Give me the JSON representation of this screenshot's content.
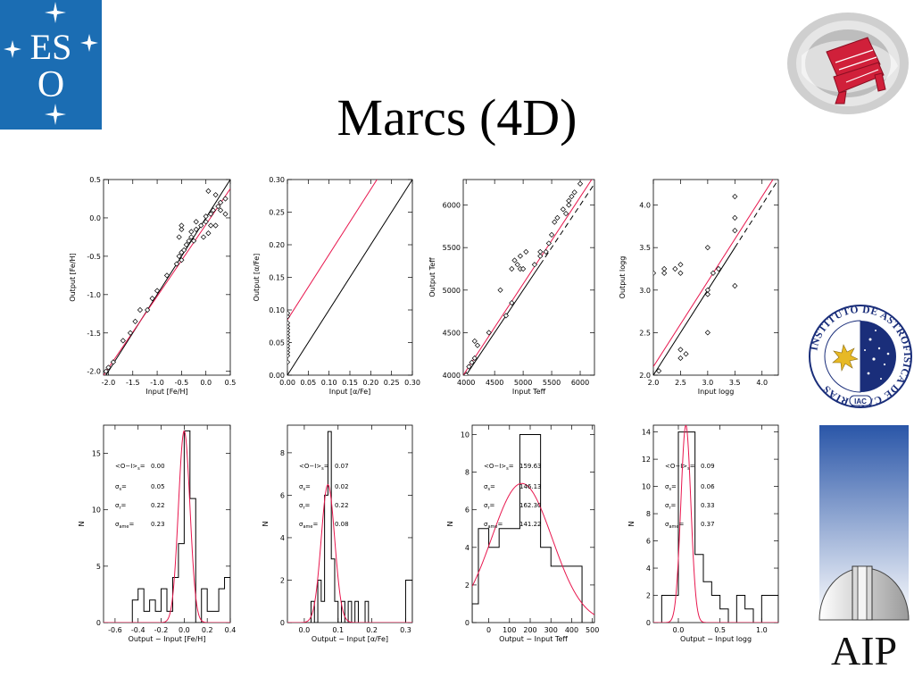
{
  "slide": {
    "title": "Marcs (4D)"
  },
  "logos": {
    "eso": {
      "text_top": "ES",
      "text_bottom": "O",
      "colors": {
        "bg": "#1b6db3",
        "fg": "#ffffff"
      }
    },
    "aip_globe": {
      "colors": {
        "ring": "#c8c8c8",
        "telescope": "#d0203a"
      }
    },
    "iac": {
      "ring_text": "INSTITUTO DE ASTROFISICA DE CANARIAS",
      "badge": "IAC",
      "colors": {
        "navy": "#1a2e7a",
        "gold": "#e7b925"
      }
    },
    "aip": {
      "text": "AIP",
      "colors": {
        "sky_top": "#2a56a8",
        "sky_bottom": "#ffffff"
      }
    }
  },
  "chart_data": [
    {
      "type": "scatter",
      "xlabel": "Input [Fe/H]",
      "ylabel": "Output [Fe/H]",
      "xlim": [
        -2.1,
        0.5
      ],
      "ylim": [
        -2.05,
        0.5
      ],
      "xticks": [
        -2.0,
        -1.5,
        -1.0,
        -0.5,
        0.0,
        0.5
      ],
      "xtick_labels": [
        "-2.0",
        "-1.5",
        "-1.0",
        "-0.5",
        "0.0",
        "0.5"
      ],
      "yticks": [
        -2.0,
        -1.5,
        -1.0,
        -0.5,
        0.0,
        0.5
      ],
      "ytick_labels": [
        "-2.0",
        "-1.5",
        "-1.0",
        "-0.5",
        "0.0",
        "0.5"
      ],
      "points": [
        [
          -2.05,
          -2.0
        ],
        [
          -2.0,
          -1.95
        ],
        [
          -1.9,
          -1.88
        ],
        [
          -1.7,
          -1.6
        ],
        [
          -1.55,
          -1.5
        ],
        [
          -1.45,
          -1.35
        ],
        [
          -1.35,
          -1.2
        ],
        [
          -1.2,
          -1.2
        ],
        [
          -1.1,
          -1.05
        ],
        [
          -1.0,
          -0.95
        ],
        [
          -0.8,
          -0.75
        ],
        [
          -0.6,
          -0.6
        ],
        [
          -0.55,
          -0.5
        ],
        [
          -0.5,
          -0.45
        ],
        [
          -0.5,
          -0.55
        ],
        [
          -0.45,
          -0.42
        ],
        [
          -0.4,
          -0.35
        ],
        [
          -0.35,
          -0.3
        ],
        [
          -0.3,
          -0.25
        ],
        [
          -0.3,
          -0.18
        ],
        [
          -0.25,
          -0.3
        ],
        [
          -0.2,
          -0.15
        ],
        [
          -0.2,
          -0.05
        ],
        [
          -0.1,
          -0.1
        ],
        [
          0.0,
          -0.05
        ],
        [
          0.0,
          0.02
        ],
        [
          0.05,
          -0.2
        ],
        [
          0.1,
          0.05
        ],
        [
          0.1,
          -0.1
        ],
        [
          0.15,
          0.1
        ],
        [
          0.2,
          -0.1
        ],
        [
          0.2,
          0.3
        ],
        [
          0.25,
          0.15
        ],
        [
          0.3,
          0.2
        ],
        [
          0.4,
          0.05
        ],
        [
          0.4,
          0.25
        ],
        [
          -0.55,
          -0.25
        ],
        [
          -0.5,
          -0.15
        ],
        [
          -0.5,
          -0.1
        ],
        [
          -0.05,
          -0.25
        ],
        [
          0.05,
          0.35
        ],
        [
          0.3,
          0.1
        ]
      ],
      "lines": [
        {
          "name": "one-to-one",
          "color": "#000000",
          "dash": false,
          "from": [
            -2.1,
            -2.1
          ],
          "to": [
            0.5,
            0.5
          ]
        },
        {
          "name": "fit",
          "color": "#e8174e",
          "dash": false,
          "from": [
            -2.1,
            -2.05
          ],
          "to": [
            0.5,
            0.38
          ]
        }
      ]
    },
    {
      "type": "scatter",
      "xlabel": "Input [α/Fe]",
      "ylabel": "Output [α/Fe]",
      "xlim": [
        0.0,
        0.3
      ],
      "ylim": [
        0.0,
        0.3
      ],
      "xticks": [
        0.0,
        0.05,
        0.1,
        0.15,
        0.2,
        0.25,
        0.3
      ],
      "xtick_labels": [
        "0.00",
        "0.05",
        "0.10",
        "0.15",
        "0.20",
        "0.25",
        "0.30"
      ],
      "yticks": [
        0.0,
        0.05,
        0.1,
        0.15,
        0.2,
        0.25,
        0.3
      ],
      "ytick_labels": [
        "0.00",
        "0.05",
        "0.10",
        "0.15",
        "0.20",
        "0.25",
        "0.30"
      ],
      "points": [
        [
          0.0,
          0.02
        ],
        [
          0.0,
          0.03
        ],
        [
          0.0,
          0.035
        ],
        [
          0.0,
          0.04
        ],
        [
          0.0,
          0.045
        ],
        [
          0.0,
          0.05
        ],
        [
          0.0,
          0.055
        ],
        [
          0.0,
          0.06
        ],
        [
          0.0,
          0.065
        ],
        [
          0.0,
          0.07
        ],
        [
          0.0,
          0.075
        ],
        [
          0.0,
          0.08
        ],
        [
          0.0,
          0.09
        ],
        [
          0.0,
          0.095
        ]
      ],
      "lines": [
        {
          "name": "one-to-one",
          "color": "#000000",
          "dash": false,
          "from": [
            0.0,
            0.0
          ],
          "to": [
            0.3,
            0.3
          ]
        },
        {
          "name": "fit",
          "color": "#e8174e",
          "dash": false,
          "from": [
            0.0,
            0.085
          ],
          "to": [
            0.3,
            0.385
          ]
        }
      ]
    },
    {
      "type": "scatter",
      "xlabel": "Input Teff",
      "ylabel": "Output Teff",
      "xlim": [
        3950,
        6250
      ],
      "ylim": [
        4000,
        6300
      ],
      "xticks": [
        4000,
        4500,
        5000,
        5500,
        6000
      ],
      "xtick_labels": [
        "4000",
        "4500",
        "5000",
        "5500",
        "6000"
      ],
      "yticks": [
        4000,
        4500,
        5000,
        5500,
        6000
      ],
      "ytick_labels": [
        "4000",
        "4500",
        "5000",
        "5500",
        "6000"
      ],
      "points": [
        [
          4000,
          4000
        ],
        [
          4050,
          4100
        ],
        [
          4100,
          4150
        ],
        [
          4150,
          4200
        ],
        [
          4150,
          4400
        ],
        [
          4200,
          4350
        ],
        [
          4400,
          4500
        ],
        [
          4600,
          5000
        ],
        [
          4700,
          4700
        ],
        [
          4800,
          4850
        ],
        [
          4800,
          5250
        ],
        [
          4850,
          5350
        ],
        [
          4900,
          5300
        ],
        [
          4950,
          5250
        ],
        [
          4950,
          5400
        ],
        [
          5000,
          5250
        ],
        [
          5050,
          5450
        ],
        [
          5200,
          5300
        ],
        [
          5300,
          5400
        ],
        [
          5300,
          5450
        ],
        [
          5400,
          5450
        ],
        [
          5450,
          5550
        ],
        [
          5500,
          5650
        ],
        [
          5550,
          5800
        ],
        [
          5600,
          5850
        ],
        [
          5700,
          5950
        ],
        [
          5800,
          6000
        ],
        [
          5800,
          6050
        ],
        [
          5850,
          6100
        ],
        [
          5900,
          6150
        ],
        [
          6000,
          6250
        ],
        [
          5750,
          5900
        ]
      ],
      "lines": [
        {
          "name": "one-to-one",
          "color": "#000000",
          "dash": false,
          "from": [
            3950,
            3950
          ],
          "to": [
            5300,
            5300
          ]
        },
        {
          "name": "one-to-one-extension",
          "color": "#000000",
          "dash": true,
          "from": [
            5300,
            5300
          ],
          "to": [
            6250,
            6250
          ]
        },
        {
          "name": "fit",
          "color": "#e8174e",
          "dash": false,
          "from": [
            3950,
            4000
          ],
          "to": [
            6250,
            6350
          ]
        }
      ]
    },
    {
      "type": "scatter",
      "xlabel": "Input logg",
      "ylabel": "Output logg",
      "xlim": [
        2.0,
        4.3
      ],
      "ylim": [
        2.0,
        4.3
      ],
      "xticks": [
        2.0,
        2.5,
        3.0,
        3.5,
        4.0
      ],
      "xtick_labels": [
        "2.0",
        "2.5",
        "3.0",
        "3.5",
        "4.0"
      ],
      "yticks": [
        2.0,
        2.5,
        3.0,
        3.5,
        4.0
      ],
      "ytick_labels": [
        "2.0",
        "2.5",
        "3.0",
        "3.5",
        "4.0"
      ],
      "points": [
        [
          2.0,
          3.2
        ],
        [
          2.1,
          2.05
        ],
        [
          2.2,
          3.25
        ],
        [
          2.2,
          3.2
        ],
        [
          2.4,
          3.25
        ],
        [
          2.5,
          3.3
        ],
        [
          2.5,
          3.2
        ],
        [
          2.5,
          2.2
        ],
        [
          2.6,
          2.25
        ],
        [
          3.0,
          3.0
        ],
        [
          3.0,
          3.5
        ],
        [
          3.0,
          2.5
        ],
        [
          3.1,
          3.2
        ],
        [
          3.2,
          3.25
        ],
        [
          3.5,
          3.05
        ],
        [
          3.5,
          3.85
        ],
        [
          3.5,
          4.1
        ],
        [
          3.5,
          3.7
        ],
        [
          3.0,
          2.95
        ],
        [
          2.5,
          2.3
        ]
      ],
      "lines": [
        {
          "name": "one-to-one",
          "color": "#000000",
          "dash": false,
          "from": [
            2.0,
            2.0
          ],
          "to": [
            3.5,
            3.5
          ]
        },
        {
          "name": "one-to-one-extension",
          "color": "#000000",
          "dash": true,
          "from": [
            3.5,
            3.5
          ],
          "to": [
            4.3,
            4.3
          ]
        },
        {
          "name": "fit",
          "color": "#e8174e",
          "dash": false,
          "from": [
            2.0,
            2.1
          ],
          "to": [
            4.3,
            4.4
          ]
        }
      ]
    },
    {
      "type": "histogram",
      "xlabel": "Output − Input [Fe/H]",
      "ylabel": "N",
      "xlim": [
        -0.7,
        0.4
      ],
      "ylim": [
        0,
        17.5
      ],
      "xticks": [
        -0.6,
        -0.4,
        -0.2,
        0.0,
        0.2,
        0.4
      ],
      "xtick_labels": [
        "-0.6",
        "-0.4",
        "-0.2",
        "0.0",
        "0.2",
        "0.4"
      ],
      "yticks": [
        0,
        5,
        10,
        15
      ],
      "ytick_labels": [
        "0",
        "5",
        "10",
        "15"
      ],
      "edges": [
        -0.5,
        -0.45,
        -0.4,
        -0.35,
        -0.3,
        -0.25,
        -0.2,
        -0.15,
        -0.1,
        -0.05,
        0.0,
        0.05,
        0.1,
        0.15,
        0.2,
        0.25,
        0.3,
        0.35,
        0.4
      ],
      "counts": [
        0,
        2,
        3,
        1,
        2,
        1,
        3,
        1,
        4,
        7,
        17,
        11,
        0,
        3,
        1,
        1,
        3,
        4
      ],
      "gaussian": {
        "mean": 0.0,
        "sigma": 0.05,
        "amplitude": 17
      },
      "stats": [
        {
          "label": "<O−I>",
          "sub": "s",
          "value": "0.00"
        },
        {
          "label": "σ",
          "sub": "s",
          "value": "0.05"
        },
        {
          "label": "σ",
          "sub": "r",
          "value": "0.22"
        },
        {
          "label": "σ",
          "sub": "ame",
          "value": "0.23"
        }
      ]
    },
    {
      "type": "histogram",
      "xlabel": "Output − Input [α/Fe]",
      "ylabel": "N",
      "xlim": [
        -0.05,
        0.32
      ],
      "ylim": [
        0,
        9.3
      ],
      "xticks": [
        0.0,
        0.1,
        0.2,
        0.3
      ],
      "xtick_labels": [
        "0.0",
        "0.1",
        "0.2",
        "0.3"
      ],
      "yticks": [
        0,
        2,
        4,
        6,
        8
      ],
      "ytick_labels": [
        "0",
        "2",
        "4",
        "6",
        "8"
      ],
      "edges": [
        0.02,
        0.03,
        0.04,
        0.05,
        0.06,
        0.07,
        0.08,
        0.09,
        0.1,
        0.11,
        0.12,
        0.13,
        0.14,
        0.15,
        0.16,
        0.17,
        0.18,
        0.19,
        0.2
      ],
      "counts": [
        1,
        0,
        2,
        1,
        6,
        9,
        3,
        1,
        0,
        1,
        0,
        1,
        0,
        1,
        0,
        0,
        1,
        0
      ],
      "extra_bar": {
        "x0": 0.3,
        "x1": 0.32,
        "count": 2
      },
      "gaussian": {
        "mean": 0.07,
        "sigma": 0.02,
        "amplitude": 6.5
      },
      "stats": [
        {
          "label": "<O−I>",
          "sub": "s",
          "value": "0.07"
        },
        {
          "label": "σ",
          "sub": "s",
          "value": "0.02"
        },
        {
          "label": "σ",
          "sub": "r",
          "value": "0.22"
        },
        {
          "label": "σ",
          "sub": "ame",
          "value": "0.08"
        }
      ]
    },
    {
      "type": "histogram",
      "xlabel": "Output − Input Teff",
      "ylabel": "N",
      "xlim": [
        -80,
        510
      ],
      "ylim": [
        0,
        10.5
      ],
      "xticks": [
        0,
        100,
        200,
        300,
        400,
        500
      ],
      "xtick_labels": [
        "0",
        "100",
        "200",
        "300",
        "400",
        "500"
      ],
      "yticks": [
        0,
        2,
        4,
        6,
        8,
        10
      ],
      "ytick_labels": [
        "0",
        "2",
        "4",
        "6",
        "8",
        "10"
      ],
      "edges": [
        -80,
        -50,
        0,
        50,
        100,
        150,
        200,
        250,
        300,
        350,
        400,
        450
      ],
      "counts": [
        1,
        5,
        4,
        5,
        5,
        10,
        10,
        4,
        3,
        3,
        3
      ],
      "gaussian": {
        "mean": 159.63,
        "sigma": 146.13,
        "amplitude": 7.4
      },
      "stats": [
        {
          "label": "<O−I>",
          "sub": "s",
          "value": "159.63"
        },
        {
          "label": "σ",
          "sub": "s",
          "value": "146.13"
        },
        {
          "label": "σ",
          "sub": "r",
          "value": "162.30"
        },
        {
          "label": "σ",
          "sub": "ame",
          "value": "141.22"
        }
      ]
    },
    {
      "type": "histogram",
      "xlabel": "Output − Input logg",
      "ylabel": "N",
      "xlim": [
        -0.3,
        1.2
      ],
      "ylim": [
        0,
        14.5
      ],
      "xticks": [
        0.0,
        0.5,
        1.0
      ],
      "xtick_labels": [
        "0.0",
        "0.5",
        "1.0"
      ],
      "yticks": [
        0,
        2,
        4,
        6,
        8,
        10,
        12,
        14
      ],
      "ytick_labels": [
        "0",
        "2",
        "4",
        "6",
        "8",
        "10",
        "12",
        "14"
      ],
      "edges": [
        -0.3,
        -0.2,
        -0.1,
        0.0,
        0.1,
        0.2,
        0.3,
        0.4,
        0.5,
        0.6,
        0.7,
        0.8,
        0.9,
        1.0,
        1.1,
        1.2
      ],
      "counts": [
        0,
        2,
        2,
        14,
        14,
        5,
        3,
        2,
        1,
        0,
        2,
        1,
        0,
        2,
        2
      ],
      "gaussian": {
        "mean": 0.09,
        "sigma": 0.06,
        "amplitude": 14.5
      },
      "stats": [
        {
          "label": "<O−I>",
          "sub": "s",
          "value": "0.09"
        },
        {
          "label": "σ",
          "sub": "s",
          "value": "0.06"
        },
        {
          "label": "σ",
          "sub": "r",
          "value": "0.33"
        },
        {
          "label": "σ",
          "sub": "ame",
          "value": "0.37"
        }
      ]
    }
  ]
}
